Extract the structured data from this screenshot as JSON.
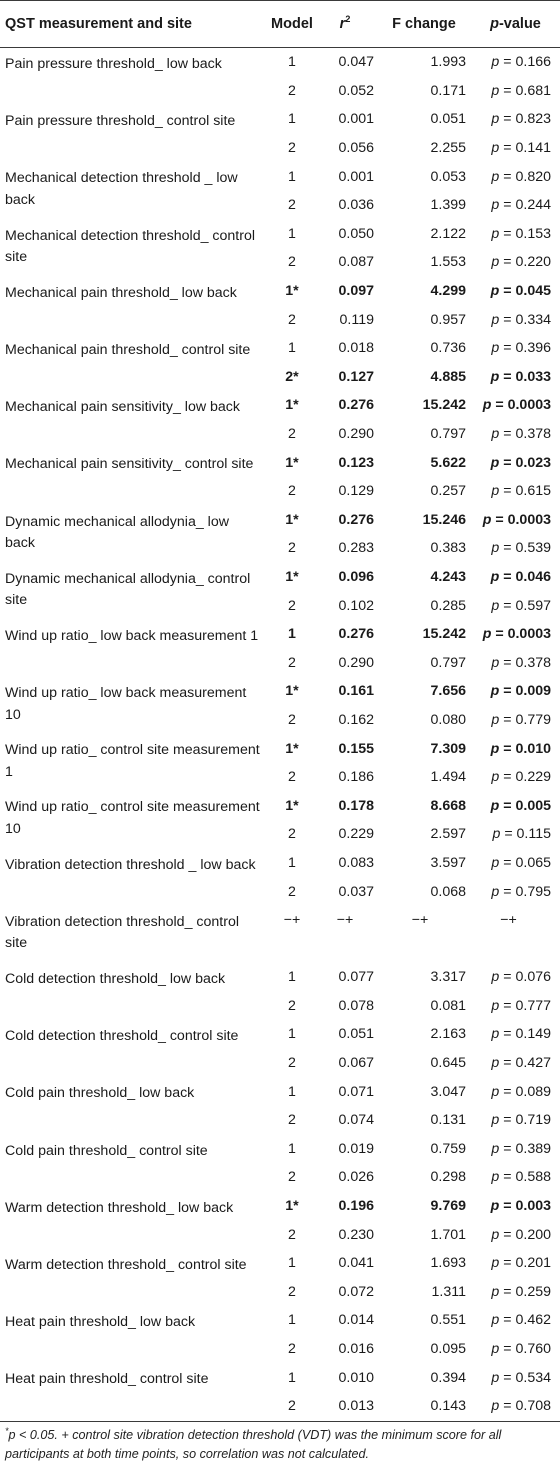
{
  "header": {
    "col1": "QST measurement and site",
    "col2": "Model",
    "col3": "r",
    "col3_sup": "2",
    "col4": "F change",
    "col5_p": "p",
    "col5_rest": "-value"
  },
  "groups": [
    {
      "label": "Pain pressure threshold_ low back",
      "rows": [
        {
          "model": "1",
          "r2": "0.047",
          "f": "1.993",
          "p": "0.166",
          "bold": false
        },
        {
          "model": "2",
          "r2": "0.052",
          "f": "0.171",
          "p": "0.681",
          "bold": false
        }
      ]
    },
    {
      "label": "Pain pressure threshold_ control site",
      "rows": [
        {
          "model": "1",
          "r2": "0.001",
          "f": "0.051",
          "p": "0.823",
          "bold": false
        },
        {
          "model": "2",
          "r2": "0.056",
          "f": "2.255",
          "p": "0.141",
          "bold": false
        }
      ]
    },
    {
      "label": "Mechanical detection threshold _ low back",
      "rows": [
        {
          "model": "1",
          "r2": "0.001",
          "f": "0.053",
          "p": "0.820",
          "bold": false
        },
        {
          "model": "2",
          "r2": "0.036",
          "f": "1.399",
          "p": "0.244",
          "bold": false
        }
      ]
    },
    {
      "label": "Mechanical detection threshold_ control site",
      "rows": [
        {
          "model": "1",
          "r2": "0.050",
          "f": "2.122",
          "p": "0.153",
          "bold": false
        },
        {
          "model": "2",
          "r2": "0.087",
          "f": "1.553",
          "p": "0.220",
          "bold": false
        }
      ]
    },
    {
      "label": "Mechanical pain threshold_ low back",
      "rows": [
        {
          "model": "1*",
          "r2": "0.097",
          "f": "4.299",
          "p": "0.045",
          "bold": true
        },
        {
          "model": "2",
          "r2": "0.119",
          "f": "0.957",
          "p": "0.334",
          "bold": false
        }
      ]
    },
    {
      "label": "Mechanical pain threshold_ control site",
      "rows": [
        {
          "model": "1",
          "r2": "0.018",
          "f": "0.736",
          "p": "0.396",
          "bold": false
        },
        {
          "model": "2*",
          "r2": "0.127",
          "f": "4.885",
          "p": "0.033",
          "bold": true
        }
      ]
    },
    {
      "label": "Mechanical pain sensitivity_ low back",
      "rows": [
        {
          "model": "1*",
          "r2": "0.276",
          "f": "15.242",
          "p": "0.0003",
          "bold": true
        },
        {
          "model": "2",
          "r2": "0.290",
          "f": "0.797",
          "p": "0.378",
          "bold": false
        }
      ]
    },
    {
      "label": "Mechanical pain sensitivity_ control site",
      "rows": [
        {
          "model": "1*",
          "r2": "0.123",
          "f": "5.622",
          "p": "0.023",
          "bold": true
        },
        {
          "model": "2",
          "r2": "0.129",
          "f": "0.257",
          "p": "0.615",
          "bold": false
        }
      ]
    },
    {
      "label": "Dynamic mechanical allodynia_ low back",
      "rows": [
        {
          "model": "1*",
          "r2": "0.276",
          "f": "15.246",
          "p": "0.0003",
          "bold": true
        },
        {
          "model": "2",
          "r2": "0.283",
          "f": "0.383",
          "p": "0.539",
          "bold": false
        }
      ]
    },
    {
      "label": "Dynamic mechanical allodynia_ control site",
      "rows": [
        {
          "model": "1*",
          "r2": "0.096",
          "f": "4.243",
          "p": "0.046",
          "bold": true
        },
        {
          "model": "2",
          "r2": "0.102",
          "f": "0.285",
          "p": "0.597",
          "bold": false
        }
      ]
    },
    {
      "label": "Wind up ratio_ low back measurement 1",
      "rows": [
        {
          "model": "1",
          "r2": "0.276",
          "f": "15.242",
          "p": "0.0003",
          "bold": true
        },
        {
          "model": "2",
          "r2": "0.290",
          "f": "0.797",
          "p": "0.378",
          "bold": false
        }
      ]
    },
    {
      "label": "Wind up ratio_ low back measurement 10",
      "rows": [
        {
          "model": "1*",
          "r2": "0.161",
          "f": "7.656",
          "p": "0.009",
          "bold": true
        },
        {
          "model": "2",
          "r2": "0.162",
          "f": "0.080",
          "p": "0.779",
          "bold": false
        }
      ]
    },
    {
      "label": "Wind up ratio_ control site measurement 1",
      "rows": [
        {
          "model": "1*",
          "r2": "0.155",
          "f": "7.309",
          "p": "0.010",
          "bold": true
        },
        {
          "model": "2",
          "r2": "0.186",
          "f": "1.494",
          "p": "0.229",
          "bold": false
        }
      ]
    },
    {
      "label": "Wind up ratio_ control site measurement 10",
      "rows": [
        {
          "model": "1*",
          "r2": "0.178",
          "f": "8.668",
          "p": "0.005",
          "bold": true
        },
        {
          "model": "2",
          "r2": "0.229",
          "f": "2.597",
          "p": "0.115",
          "bold": false
        }
      ]
    },
    {
      "label": "Vibration detection threshold _ low back",
      "rows": [
        {
          "model": "1",
          "r2": "0.083",
          "f": "3.597",
          "p": "0.065",
          "bold": false
        },
        {
          "model": "2",
          "r2": "0.037",
          "f": "0.068",
          "p": "0.795",
          "bold": false
        }
      ]
    },
    {
      "label": "Vibration detection threshold_ control site",
      "full": true,
      "rows": [
        {
          "model": "−+",
          "r2": "−+",
          "f": "−+",
          "p": "−+",
          "bold": false
        }
      ]
    },
    {
      "label": "Cold detection threshold_ low back",
      "rows": [
        {
          "model": "1",
          "r2": "0.077",
          "f": "3.317",
          "p": "0.076",
          "bold": false
        },
        {
          "model": "2",
          "r2": "0.078",
          "f": "0.081",
          "p": "0.777",
          "bold": false
        }
      ]
    },
    {
      "label": "Cold detection threshold_ control site",
      "rows": [
        {
          "model": "1",
          "r2": "0.051",
          "f": "2.163",
          "p": "0.149",
          "bold": false
        },
        {
          "model": "2",
          "r2": "0.067",
          "f": "0.645",
          "p": "0.427",
          "bold": false
        }
      ]
    },
    {
      "label": "Cold pain threshold_ low back",
      "rows": [
        {
          "model": "1",
          "r2": "0.071",
          "f": "3.047",
          "p": "0.089",
          "bold": false
        },
        {
          "model": "2",
          "r2": "0.074",
          "f": "0.131",
          "p": "0.719",
          "bold": false
        }
      ]
    },
    {
      "label": "Cold pain threshold_ control site",
      "rows": [
        {
          "model": "1",
          "r2": "0.019",
          "f": "0.759",
          "p": "0.389",
          "bold": false
        },
        {
          "model": "2",
          "r2": "0.026",
          "f": "0.298",
          "p": "0.588",
          "bold": false
        }
      ]
    },
    {
      "label": "Warm detection threshold_ low back",
      "rows": [
        {
          "model": "1*",
          "r2": "0.196",
          "f": "9.769",
          "p": "0.003",
          "bold": true
        },
        {
          "model": "2",
          "r2": "0.230",
          "f": "1.701",
          "p": "0.200",
          "bold": false
        }
      ]
    },
    {
      "label": "Warm detection threshold_ control site",
      "rows": [
        {
          "model": "1",
          "r2": "0.041",
          "f": "1.693",
          "p": "0.201",
          "bold": false
        },
        {
          "model": "2",
          "r2": "0.072",
          "f": "1.311",
          "p": "0.259",
          "bold": false
        }
      ]
    },
    {
      "label": "Heat pain threshold_ low back",
      "rows": [
        {
          "model": "1",
          "r2": "0.014",
          "f": "0.551",
          "p": "0.462",
          "bold": false
        },
        {
          "model": "2",
          "r2": "0.016",
          "f": "0.095",
          "p": "0.760",
          "bold": false
        }
      ]
    },
    {
      "label": "Heat pain threshold_ control site",
      "rows": [
        {
          "model": "1",
          "r2": "0.010",
          "f": "0.394",
          "p": "0.534",
          "bold": false
        },
        {
          "model": "2",
          "r2": "0.013",
          "f": "0.143",
          "p": "0.708",
          "bold": false
        }
      ]
    }
  ],
  "p_prefix": "p",
  "p_eq": " = ",
  "footnote": {
    "star": "*",
    "text": "p < 0.05. + control site vibration detection threshold (VDT) was the minimum score for all participants at both time points, so correlation was not calculated."
  }
}
